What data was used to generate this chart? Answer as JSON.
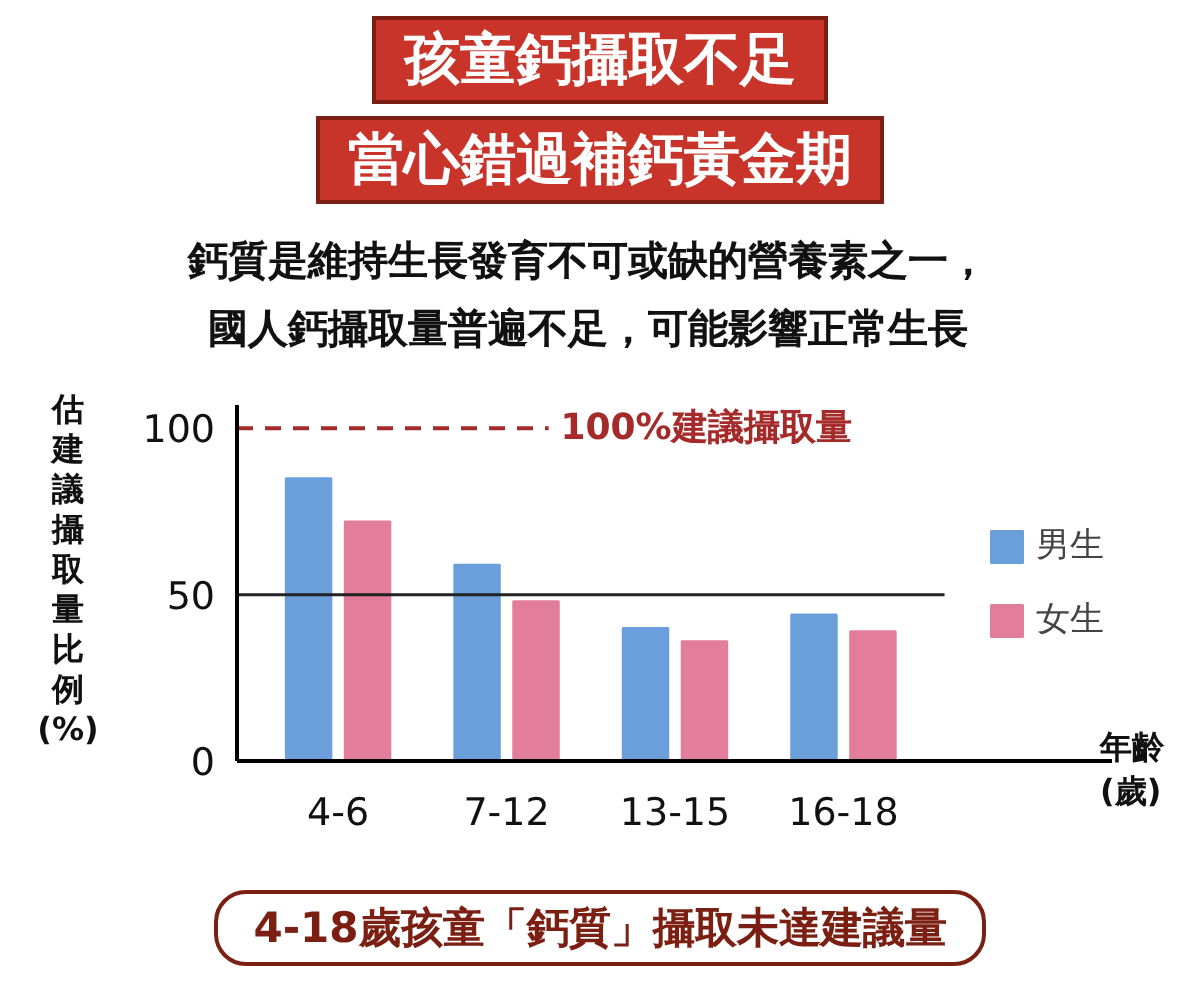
{
  "chart_data": {
    "type": "bar",
    "title": "孩童鈣攝取不足",
    "subtitle": "當心錯過補鈣黃金期",
    "ylabel": "估建議攝取量比例(%)",
    "xlabel": "年齡(歲)",
    "categories": [
      "4-6",
      "7-12",
      "13-15",
      "16-18"
    ],
    "series": [
      {
        "name": "男生",
        "color": "#6a9fdc",
        "values": [
          85,
          59,
          40,
          44
        ]
      },
      {
        "name": "女生",
        "color": "#e27d9c",
        "values": [
          72,
          48,
          36,
          39
        ]
      }
    ],
    "ylim": [
      0,
      107
    ],
    "yticks": [
      0,
      50,
      100
    ],
    "grid": false,
    "legend": "right",
    "ref_lines": [
      {
        "axis": "y",
        "value": 100,
        "label": "100%建議攝取量",
        "color": "#a52a2a",
        "line_style": "dashed"
      },
      {
        "axis": "y",
        "value": 50,
        "label": null,
        "color": "#222222",
        "line_style": "solid"
      }
    ],
    "annotations": [
      "鈣質是維持生長發育不可或缺的營養素之一，國人鈣攝取量普遍不足，可能影響正常生長",
      "4-18歲孩童「鈣質」攝取未達建議量"
    ]
  }
}
